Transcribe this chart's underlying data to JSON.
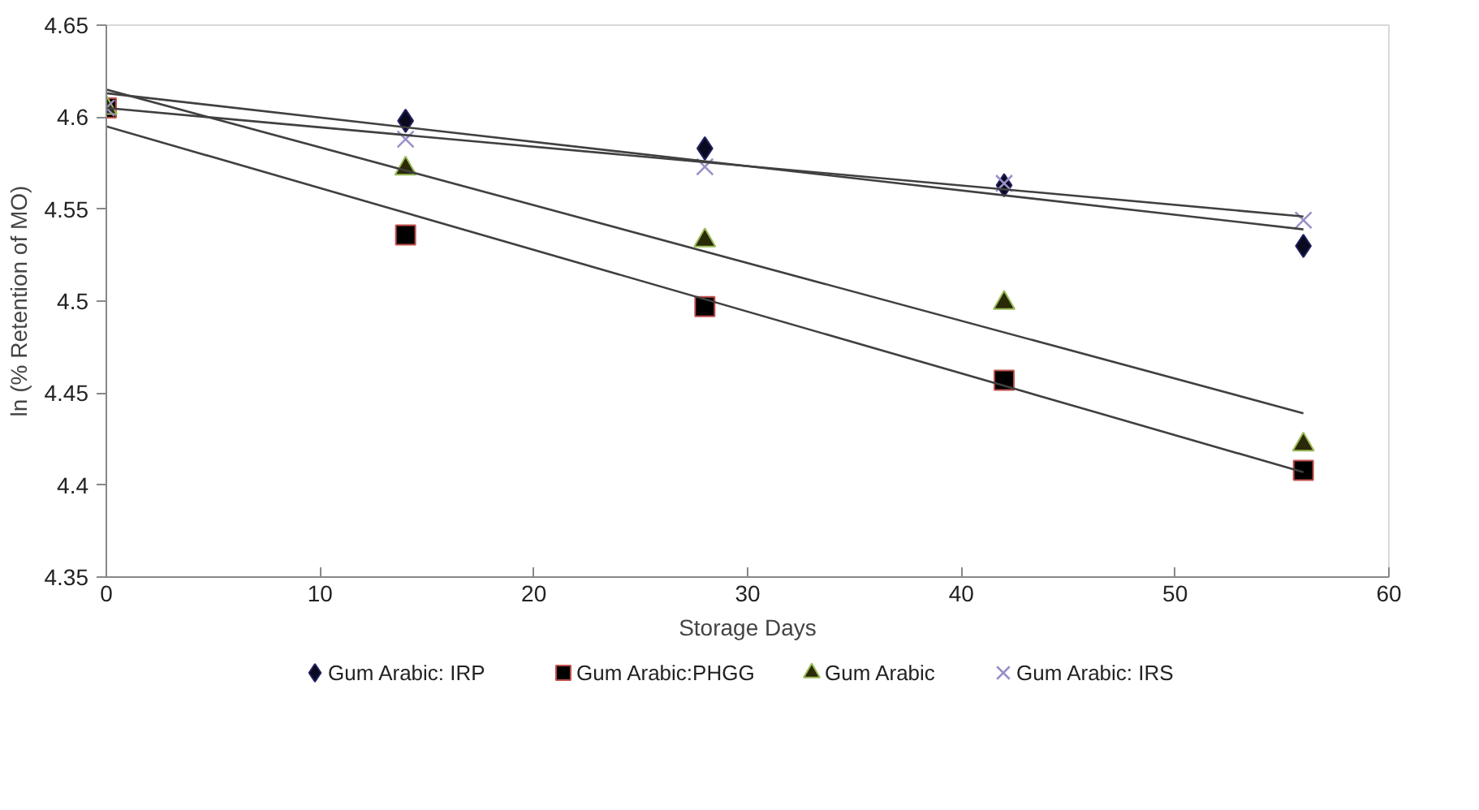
{
  "chart_data": {
    "type": "scatter",
    "xlabel": "Storage Days",
    "ylabel": "ln (% Retention of MO)",
    "xlim": [
      0,
      60
    ],
    "xticks": [
      0,
      10,
      20,
      30,
      40,
      50,
      60
    ],
    "ylim": [
      4.35,
      4.65
    ],
    "yticks": [
      4.35,
      4.4,
      4.45,
      4.5,
      4.55,
      4.6,
      4.65
    ],
    "grid": false,
    "legend": "bottom",
    "series": [
      {
        "name": "Gum Arabic: IRP",
        "color": "#0a0a1e",
        "marker": "diamond",
        "x": [
          14,
          28,
          42,
          56
        ],
        "values": [
          4.598,
          4.583,
          4.563,
          4.53
        ]
      },
      {
        "name": "Gum Arabic:PHGG",
        "color": "#000000",
        "marker": "square",
        "x": [
          0,
          14,
          28,
          42,
          56
        ],
        "values": [
          4.605,
          4.536,
          4.497,
          4.457,
          4.408
        ]
      },
      {
        "name": "Gum Arabic",
        "color": "#2a2a08",
        "marker": "triangle",
        "x": [
          0,
          14,
          28,
          42,
          56
        ],
        "values": [
          4.605,
          4.572,
          4.533,
          4.499,
          4.422
        ]
      },
      {
        "name": "Gum Arabic: IRS",
        "color": "#9a8fc8",
        "marker": "cross",
        "x": [
          0,
          14,
          28,
          42,
          56
        ],
        "values": [
          4.605,
          4.588,
          4.573,
          4.564,
          4.544
        ]
      },
      {
        "type": "line",
        "color": "#404040",
        "x": [
          0,
          56
        ],
        "values": [
          4.613,
          4.539
        ]
      },
      {
        "type": "line",
        "color": "#404040",
        "x": [
          0,
          56
        ],
        "values": [
          4.595,
          4.407
        ]
      },
      {
        "type": "line",
        "color": "#404040",
        "x": [
          0,
          56
        ],
        "values": [
          4.615,
          4.439
        ]
      },
      {
        "type": "line",
        "color": "#404040",
        "x": [
          0,
          56
        ],
        "values": [
          4.605,
          4.546
        ]
      }
    ]
  }
}
